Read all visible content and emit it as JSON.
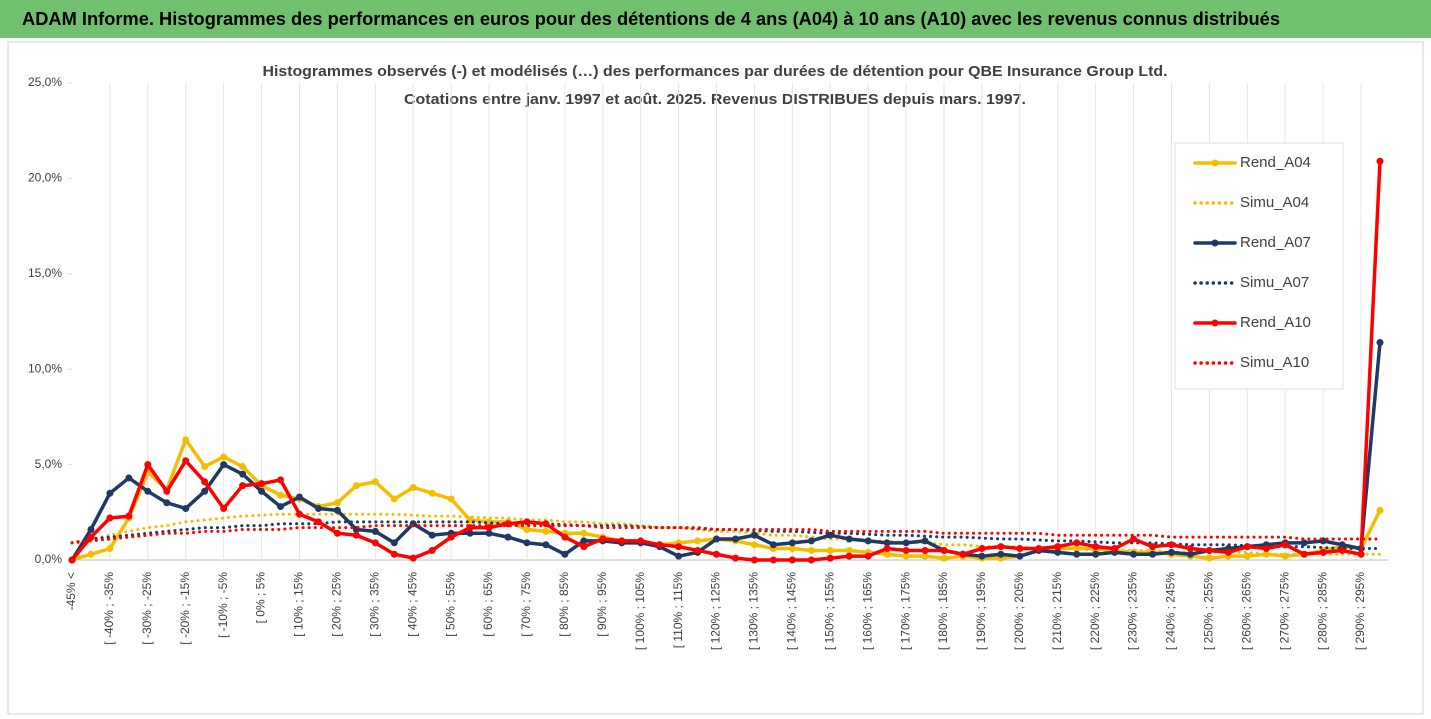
{
  "chart_data": {
    "type": "line",
    "title": "ADAM Informe. Histogrammes des performances en euros pour des détentions de 4 ans (A04) à 10 ans (A10) avec les revenus connus distribués",
    "subtitle": [
      "Histogrammes observés (-) et modélisés (…) des performances par durées de détention pour QBE Insurance Group Ltd.",
      "Cotations entre janv. 1997 et août. 2025. Revenus DISTRIBUES depuis mars. 1997."
    ],
    "categories": [
      "-45% <",
      null,
      "[ -40% ; -35%",
      null,
      "[ -30% ; -25%",
      null,
      "[ -20% ; -15%",
      null,
      "[ -10% ; -5%",
      null,
      "[ 0% ; 5%",
      null,
      "[ 10% ; 15%",
      null,
      "[ 20% ; 25%",
      null,
      "[ 30% ; 35%",
      null,
      "[ 40% ; 45%",
      null,
      "[ 50% ; 55%",
      null,
      "[ 60% ; 65%",
      null,
      "[ 70% ; 75%",
      null,
      "[ 80% ; 85%",
      null,
      "[ 90% ; 95%",
      null,
      "[ 100% ; 105%",
      null,
      "[ 110% ; 115%",
      null,
      "[ 120% ; 125%",
      null,
      "[ 130% ; 135%",
      null,
      "[ 140% ; 145%",
      null,
      "[ 150% ; 155%",
      null,
      "[ 160% ; 165%",
      null,
      "[ 170% ; 175%",
      null,
      "[ 180% ; 185%",
      null,
      "[ 190% ; 195%",
      null,
      "[ 200% ; 205%",
      null,
      "[ 210% ; 215%",
      null,
      "[ 220% ; 225%",
      null,
      "[ 230% ; 235%",
      null,
      "[ 240% ; 245%",
      null,
      "[ 250% ; 255%",
      null,
      "[ 260% ; 265%",
      null,
      "[ 270% ; 275%",
      null,
      "[ 280% ; 285%",
      null,
      "[ 290% ; 295%",
      null
    ],
    "series": [
      {
        "name": "Rend_A04",
        "color": "#f5bd00",
        "line_style": "solid",
        "values": [
          0,
          0.3,
          0.6,
          2.2,
          4.6,
          3.7,
          6.3,
          4.9,
          5.4,
          4.9,
          3.9,
          3.4,
          3.2,
          2.8,
          3.0,
          3.9,
          4.1,
          3.2,
          3.8,
          3.5,
          3.2,
          2.1,
          2.0,
          2.0,
          1.6,
          1.5,
          1.4,
          1.4,
          1.2,
          1.0,
          0.9,
          0.8,
          0.9,
          1.0,
          1.1,
          1.0,
          0.8,
          0.6,
          0.6,
          0.5,
          0.5,
          0.5,
          0.4,
          0.3,
          0.2,
          0.2,
          0.1,
          0.2,
          0.1,
          0.1,
          0.2,
          0.5,
          0.6,
          0.6,
          0.6,
          0.5,
          0.4,
          0.4,
          0.3,
          0.2,
          0.1,
          0.2,
          0.2,
          0.3,
          0.2,
          0.3,
          0.5,
          0.7,
          0.6,
          2.6
        ]
      },
      {
        "name": "Simu_A04",
        "color": "#f5bd00",
        "line_style": "dotted",
        "values": [
          0.9,
          1.1,
          1.3,
          1.5,
          1.7,
          1.8,
          2.0,
          2.1,
          2.2,
          2.3,
          2.35,
          2.4,
          2.4,
          2.4,
          2.4,
          2.4,
          2.4,
          2.4,
          2.35,
          2.3,
          2.3,
          2.25,
          2.2,
          2.2,
          2.1,
          2.1,
          2.0,
          2.0,
          1.9,
          1.9,
          1.8,
          1.7,
          1.7,
          1.6,
          1.5,
          1.5,
          1.4,
          1.3,
          1.3,
          1.2,
          1.1,
          1.1,
          1.0,
          1.0,
          0.9,
          0.9,
          0.8,
          0.8,
          0.7,
          0.7,
          0.7,
          0.6,
          0.6,
          0.6,
          0.5,
          0.5,
          0.5,
          0.5,
          0.4,
          0.4,
          0.4,
          0.4,
          0.4,
          0.3,
          0.3,
          0.3,
          0.3,
          0.3,
          0.3,
          0.3
        ]
      },
      {
        "name": "Rend_A07",
        "color": "#1f3864",
        "line_style": "solid",
        "values": [
          0,
          1.6,
          3.5,
          4.3,
          3.6,
          3.0,
          2.7,
          3.6,
          5.0,
          4.5,
          3.6,
          2.8,
          3.3,
          2.7,
          2.6,
          1.6,
          1.5,
          0.9,
          1.9,
          1.3,
          1.4,
          1.4,
          1.4,
          1.2,
          0.9,
          0.8,
          0.3,
          1.0,
          1.0,
          0.9,
          0.9,
          0.7,
          0.2,
          0.4,
          1.1,
          1.1,
          1.3,
          0.8,
          0.9,
          1.0,
          1.3,
          1.1,
          1.0,
          0.9,
          0.9,
          1.0,
          0.5,
          0.3,
          0.2,
          0.3,
          0.2,
          0.5,
          0.4,
          0.3,
          0.3,
          0.4,
          0.3,
          0.3,
          0.4,
          0.3,
          0.5,
          0.6,
          0.7,
          0.8,
          0.9,
          0.9,
          1.0,
          0.8,
          0.6,
          11.4
        ]
      },
      {
        "name": "Simu_A07",
        "color": "#1f3864",
        "line_style": "dotted",
        "values": [
          0.9,
          1.1,
          1.2,
          1.3,
          1.4,
          1.5,
          1.6,
          1.7,
          1.7,
          1.8,
          1.8,
          1.9,
          1.9,
          1.9,
          2.0,
          2.0,
          2.0,
          2.0,
          2.0,
          2.0,
          2.0,
          2.0,
          1.95,
          1.9,
          1.9,
          1.9,
          1.85,
          1.8,
          1.8,
          1.8,
          1.75,
          1.7,
          1.7,
          1.65,
          1.6,
          1.6,
          1.55,
          1.5,
          1.5,
          1.45,
          1.4,
          1.4,
          1.35,
          1.3,
          1.3,
          1.25,
          1.2,
          1.2,
          1.15,
          1.1,
          1.1,
          1.05,
          1.0,
          1.0,
          0.95,
          0.9,
          0.9,
          0.9,
          0.85,
          0.8,
          0.8,
          0.8,
          0.75,
          0.7,
          0.7,
          0.7,
          0.65,
          0.6,
          0.6,
          0.6
        ]
      },
      {
        "name": "Rend_A10",
        "color": "#ff0000",
        "line_style": "solid",
        "values": [
          0,
          1.2,
          2.2,
          2.3,
          5.0,
          3.6,
          5.2,
          4.1,
          2.7,
          3.9,
          4.0,
          4.2,
          2.4,
          2.0,
          1.4,
          1.3,
          0.9,
          0.3,
          0.1,
          0.5,
          1.2,
          1.7,
          1.7,
          1.9,
          2.0,
          1.9,
          1.2,
          0.7,
          1.1,
          1.0,
          1.0,
          0.8,
          0.7,
          0.5,
          0.3,
          0.1,
          0.0,
          0.0,
          0.0,
          0.0,
          0.1,
          0.2,
          0.2,
          0.6,
          0.5,
          0.5,
          0.5,
          0.3,
          0.6,
          0.7,
          0.6,
          0.6,
          0.7,
          0.9,
          0.7,
          0.6,
          1.1,
          0.7,
          0.8,
          0.6,
          0.5,
          0.4,
          0.7,
          0.6,
          0.8,
          0.3,
          0.4,
          0.5,
          0.3,
          20.9
        ]
      },
      {
        "name": "Simu_A10",
        "color": "#ff0000",
        "line_style": "dotted",
        "values": [
          0.9,
          1.0,
          1.1,
          1.2,
          1.3,
          1.4,
          1.4,
          1.5,
          1.5,
          1.6,
          1.6,
          1.6,
          1.7,
          1.7,
          1.7,
          1.7,
          1.8,
          1.8,
          1.8,
          1.8,
          1.8,
          1.8,
          1.8,
          1.8,
          1.8,
          1.8,
          1.8,
          1.8,
          1.7,
          1.7,
          1.7,
          1.7,
          1.7,
          1.7,
          1.6,
          1.6,
          1.6,
          1.6,
          1.6,
          1.6,
          1.5,
          1.5,
          1.5,
          1.5,
          1.5,
          1.5,
          1.4,
          1.4,
          1.4,
          1.4,
          1.4,
          1.4,
          1.3,
          1.3,
          1.3,
          1.3,
          1.3,
          1.3,
          1.2,
          1.2,
          1.2,
          1.2,
          1.2,
          1.2,
          1.2,
          1.1,
          1.1,
          1.1,
          1.1,
          1.1
        ]
      }
    ],
    "ylim": [
      0,
      25
    ],
    "yticks": [
      {
        "value": 0,
        "label": "0,0%"
      },
      {
        "value": 5,
        "label": "5,0%"
      },
      {
        "value": 10,
        "label": "10,0%"
      },
      {
        "value": 15,
        "label": "15,0%"
      },
      {
        "value": 20,
        "label": "20,0%"
      },
      {
        "value": 25,
        "label": "25,0%"
      }
    ],
    "legend": "right"
  }
}
